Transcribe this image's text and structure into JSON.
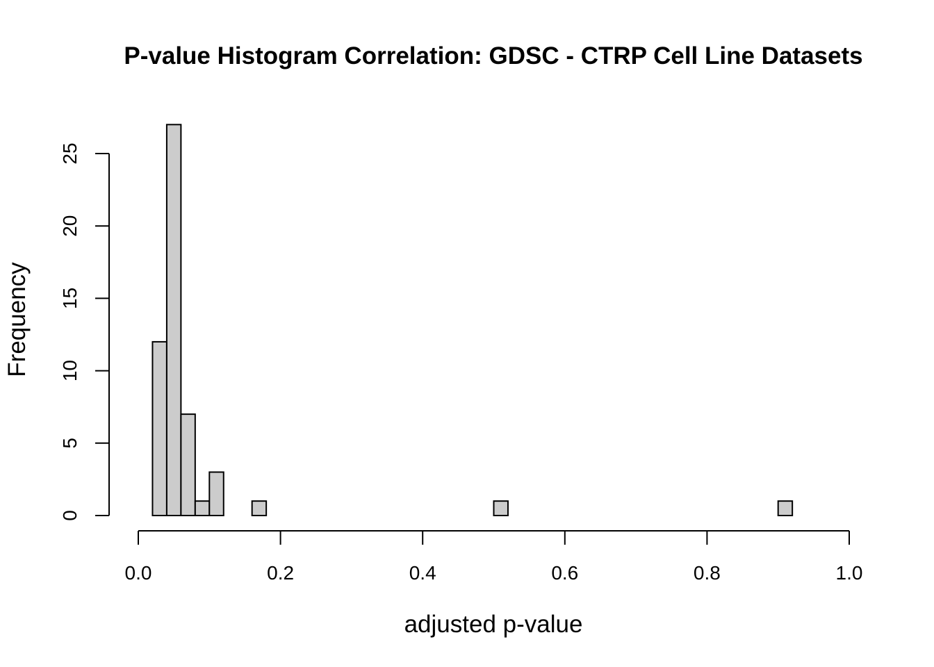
{
  "chart_data": {
    "type": "bar",
    "title": "P-value Histogram Correlation: GDSC - CTRP Cell Line Datasets",
    "xlabel": "adjusted p-value",
    "ylabel": "Frequency",
    "xlim": [
      0,
      1
    ],
    "ylim": [
      0,
      27
    ],
    "x_ticks": [
      "0.0",
      "0.2",
      "0.4",
      "0.6",
      "0.8",
      "1.0"
    ],
    "x_tick_values": [
      0,
      0.2,
      0.4,
      0.6,
      0.8,
      1.0
    ],
    "y_ticks": [
      "0",
      "5",
      "10",
      "15",
      "20",
      "25"
    ],
    "y_tick_values": [
      0,
      5,
      10,
      15,
      20,
      25
    ],
    "bin_width": 0.02,
    "bin_start": 0.02,
    "values": [
      12,
      27,
      7,
      1,
      3,
      0,
      0,
      1,
      0,
      0,
      0,
      0,
      0,
      0,
      0,
      0,
      0,
      0,
      0,
      0,
      0,
      0,
      0,
      0,
      1,
      0,
      0,
      0,
      0,
      0,
      0,
      0,
      0,
      0,
      0,
      0,
      0,
      0,
      0,
      0,
      0,
      0,
      0,
      0,
      1
    ],
    "bar_fill": "#cccccc",
    "bar_stroke": "#000000",
    "grid": false
  }
}
